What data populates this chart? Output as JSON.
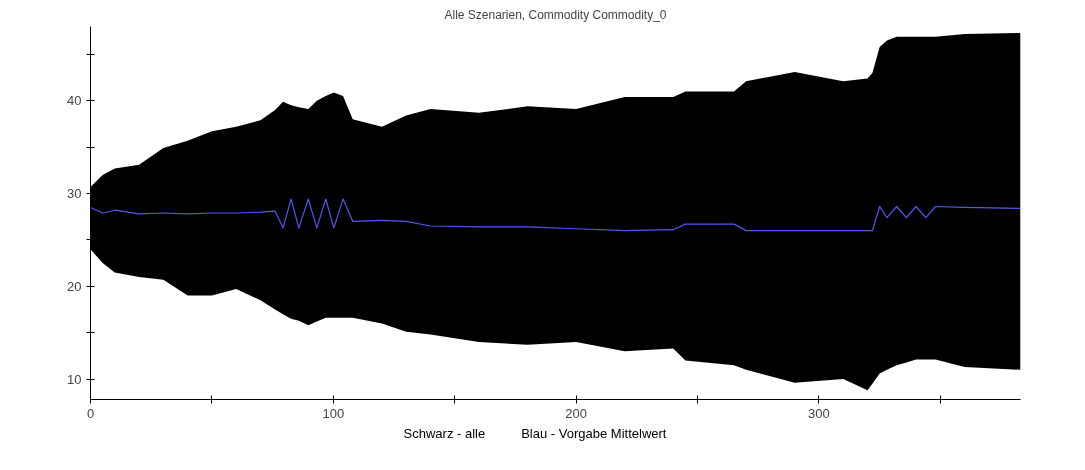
{
  "chart_data": {
    "type": "line",
    "title": "Alle Szenarien, Commodity Commodity_0",
    "xlim": [
      0,
      383
    ],
    "ylim": [
      7.8,
      48
    ],
    "xticks": [
      0,
      {
        "value": 50,
        "label": null
      },
      100,
      {
        "value": 150,
        "label": null
      },
      200,
      {
        "value": 250,
        "label": null
      },
      300,
      {
        "value": 350,
        "label": null
      }
    ],
    "yticks": [
      10,
      {
        "value": 15,
        "label": null
      },
      20,
      {
        "value": 25,
        "label": null
      },
      30,
      {
        "value": 35,
        "label": null
      },
      40,
      {
        "value": 45,
        "label": null
      }
    ],
    "grid": false,
    "series": [
      {
        "color": "#5555ee",
        "x": [
          0,
          5,
          10,
          20,
          30,
          40,
          50,
          60,
          70,
          76,
          79.3,
          82.6,
          85.8,
          89.7,
          93.2,
          96.9,
          100.2,
          104,
          108,
          120,
          130,
          140,
          160,
          180,
          200,
          220,
          240,
          245,
          265,
          270,
          290,
          310,
          320,
          322,
          325,
          328,
          332,
          336,
          340,
          344,
          348,
          360,
          383
        ],
        "values": [
          28.5,
          27.9,
          28.2,
          27.8,
          27.9,
          27.8,
          27.9,
          27.9,
          28.0,
          28.1,
          26.3,
          29.4,
          26.3,
          29.4,
          26.3,
          29.4,
          26.3,
          29.4,
          27.0,
          27.1,
          27.0,
          26.5,
          26.4,
          26.4,
          26.2,
          26.0,
          26.1,
          26.7,
          26.7,
          26.0,
          26.0,
          26.0,
          26.0,
          26.0,
          28.6,
          27.4,
          28.6,
          27.4,
          28.6,
          27.4,
          28.6,
          28.5,
          28.4
        ],
        "lower": [
          24,
          22.5,
          21.5,
          21,
          20.7,
          19,
          19,
          19.7,
          18.5,
          17.5,
          17,
          16.5,
          16.3,
          15.8,
          16.2,
          16.6,
          16.6,
          16.6,
          16.6,
          16,
          15.1,
          14.8,
          14,
          13.7,
          14,
          13,
          13.3,
          12,
          11.5,
          11,
          9.6,
          10,
          8.8,
          9.5,
          10.6,
          11,
          11.5,
          11.8,
          12.1,
          12.1,
          12.1,
          11.3,
          11
        ],
        "upper": [
          30.7,
          32,
          32.7,
          33.1,
          34.9,
          35.7,
          36.7,
          37.2,
          37.9,
          39,
          39.9,
          39.5,
          39.3,
          39.1,
          40,
          40.5,
          40.9,
          40.5,
          38,
          37.2,
          38.4,
          39.1,
          38.7,
          39.4,
          39.1,
          40.4,
          40.4,
          41,
          41,
          42.1,
          43.1,
          42.1,
          42.4,
          43,
          45.8,
          46.5,
          46.9,
          46.9,
          46.9,
          46.9,
          46.9,
          47.2,
          47.3
        ]
      }
    ],
    "annotations": [
      "Schwarz - alle",
      "Blau - Vorgabe Mittelwert"
    ]
  }
}
